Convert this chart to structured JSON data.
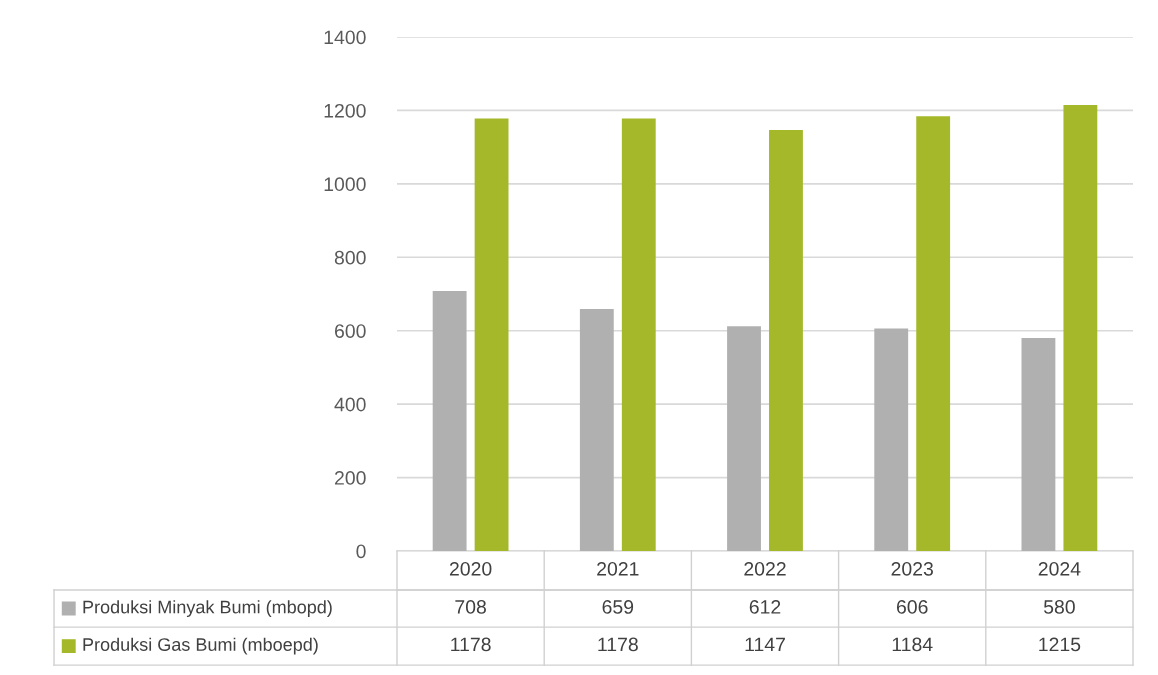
{
  "chart_data": {
    "type": "bar",
    "categories": [
      "2020",
      "2021",
      "2022",
      "2023",
      "2024"
    ],
    "series": [
      {
        "name": "Produksi Minyak Bumi (mbopd)",
        "color": "#b0b0b0",
        "values": [
          708,
          659,
          612,
          606,
          580
        ]
      },
      {
        "name": "Produksi Gas Bumi (mboepd)",
        "color": "#a5b82a",
        "values": [
          1178,
          1178,
          1147,
          1184,
          1215
        ]
      }
    ],
    "ylim": [
      0,
      1400
    ],
    "yticks": [
      0,
      200,
      400,
      600,
      800,
      1000,
      1200,
      1400
    ],
    "grid": "y",
    "data_labels": true,
    "legend": "bottom left"
  }
}
